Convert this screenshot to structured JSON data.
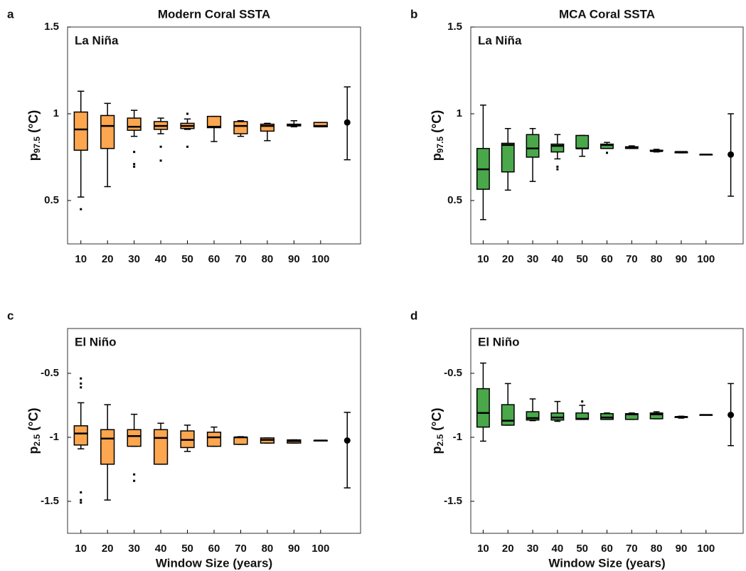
{
  "chart_data": [
    {
      "type": "box",
      "panel": "a",
      "title": "Modern Coral SSTA",
      "annotation": "La Niña",
      "ylabel_main": "p",
      "ylabel_sub": "97.5",
      "ylabel_unit": " (°C)",
      "color": "#fca650",
      "categories": [
        "10",
        "20",
        "30",
        "40",
        "50",
        "60",
        "70",
        "80",
        "90",
        "100"
      ],
      "low": [
        0.52,
        0.58,
        0.87,
        0.885,
        0.91,
        0.84,
        0.87,
        0.845,
        0.925,
        0.925
      ],
      "q1": [
        0.79,
        0.8,
        0.905,
        0.91,
        0.915,
        0.92,
        0.885,
        0.9,
        0.93,
        0.925
      ],
      "median": [
        0.91,
        0.93,
        0.925,
        0.93,
        0.93,
        0.925,
        0.93,
        0.93,
        0.935,
        0.93
      ],
      "q3": [
        1.01,
        0.99,
        0.975,
        0.955,
        0.945,
        0.985,
        0.955,
        0.94,
        0.94,
        0.95
      ],
      "high": [
        1.13,
        1.06,
        1.02,
        0.975,
        0.97,
        0.985,
        0.96,
        0.945,
        0.96,
        0.95
      ],
      "outliers": [
        [
          0.45
        ],
        [],
        [
          0.78,
          0.71,
          0.695
        ],
        [
          0.81,
          0.73
        ],
        [
          1.0,
          0.81
        ],
        [],
        [],
        [],
        [],
        []
      ],
      "reference": {
        "value": 0.95,
        "low": 0.735,
        "high": 1.155
      },
      "ylim": [
        0.25,
        1.5
      ],
      "yticks": [
        0.5,
        1,
        1.5
      ]
    },
    {
      "type": "box",
      "panel": "b",
      "title": "MCA Coral SSTA",
      "annotation": "La Niña",
      "ylabel_main": "p",
      "ylabel_sub": "97.5",
      "ylabel_unit": " (°C)",
      "color": "#4aa84b",
      "categories": [
        "10",
        "20",
        "30",
        "40",
        "50",
        "60",
        "70",
        "80",
        "90",
        "100"
      ],
      "low": [
        0.39,
        0.56,
        0.61,
        0.74,
        0.755,
        0.8,
        0.8,
        0.78,
        0.775,
        0.765
      ],
      "q1": [
        0.565,
        0.665,
        0.75,
        0.78,
        0.8,
        0.8,
        0.8,
        0.785,
        0.775,
        0.765
      ],
      "median": [
        0.68,
        0.82,
        0.8,
        0.815,
        0.8,
        0.82,
        0.805,
        0.785,
        0.78,
        0.765
      ],
      "q3": [
        0.8,
        0.83,
        0.88,
        0.825,
        0.875,
        0.825,
        0.81,
        0.79,
        0.78,
        0.765
      ],
      "high": [
        1.05,
        0.915,
        0.915,
        0.88,
        0.875,
        0.835,
        0.815,
        0.795,
        0.78,
        0.765
      ],
      "outliers": [
        [],
        [],
        [],
        [
          0.695,
          0.68
        ],
        [],
        [
          0.775
        ],
        [],
        [],
        [],
        []
      ],
      "reference": {
        "value": 0.765,
        "low": 0.525,
        "high": 1.0
      },
      "ylim": [
        0.25,
        1.5
      ],
      "yticks": [
        0.5,
        1,
        1.5
      ]
    },
    {
      "type": "box",
      "panel": "c",
      "annotation": "El Niño",
      "xlabel": "Window Size (years)",
      "ylabel_main": "p",
      "ylabel_sub": "2.5",
      "ylabel_unit": " (°C)",
      "color": "#fca650",
      "categories": [
        "10",
        "20",
        "30",
        "40",
        "50",
        "60",
        "70",
        "80",
        "90",
        "100"
      ],
      "low": [
        -1.09,
        -1.49,
        -1.07,
        -1.21,
        -1.11,
        -1.07,
        -1.055,
        -1.045,
        -1.045,
        -1.025
      ],
      "q1": [
        -1.06,
        -1.21,
        -1.07,
        -1.21,
        -1.08,
        -1.07,
        -1.055,
        -1.045,
        -1.045,
        -1.025
      ],
      "median": [
        -0.97,
        -1.01,
        -0.99,
        -1.005,
        -1.02,
        -1.0,
        -1.0,
        -1.02,
        -1.03,
        -1.025
      ],
      "q3": [
        -0.91,
        -0.94,
        -0.94,
        -0.94,
        -0.95,
        -0.96,
        -1.0,
        -1.005,
        -1.02,
        -1.025
      ],
      "high": [
        -0.73,
        -0.745,
        -0.82,
        -0.89,
        -0.905,
        -0.92,
        -0.995,
        -1.005,
        -1.02,
        -1.025
      ],
      "outliers": [
        [
          -0.54,
          -0.58,
          -0.61,
          -1.43,
          -1.49,
          -1.51
        ],
        [],
        [
          -1.29,
          -1.34
        ],
        [],
        [],
        [],
        [],
        [],
        [],
        []
      ],
      "reference": {
        "value": -1.025,
        "low": -1.395,
        "high": -0.805
      },
      "ylim": [
        -1.75,
        -0.15
      ],
      "yticks": [
        -1.5,
        -1,
        -0.5
      ]
    },
    {
      "type": "box",
      "panel": "d",
      "annotation": "El Niño",
      "xlabel": "Window Size (years)",
      "ylabel_main": "p",
      "ylabel_sub": "2.5",
      "ylabel_unit": " (°C)",
      "color": "#4aa84b",
      "categories": [
        "10",
        "20",
        "30",
        "40",
        "50",
        "60",
        "70",
        "80",
        "90",
        "100"
      ],
      "low": [
        -1.03,
        -0.905,
        -0.87,
        -0.875,
        -0.86,
        -0.86,
        -0.86,
        -0.855,
        -0.85,
        -0.825
      ],
      "q1": [
        -0.92,
        -0.905,
        -0.865,
        -0.865,
        -0.86,
        -0.86,
        -0.86,
        -0.855,
        -0.845,
        -0.825
      ],
      "median": [
        -0.81,
        -0.87,
        -0.85,
        -0.845,
        -0.855,
        -0.845,
        -0.82,
        -0.82,
        -0.84,
        -0.825
      ],
      "q3": [
        -0.62,
        -0.745,
        -0.8,
        -0.81,
        -0.81,
        -0.815,
        -0.815,
        -0.81,
        -0.84,
        -0.825
      ],
      "high": [
        -0.42,
        -0.58,
        -0.7,
        -0.72,
        -0.75,
        -0.81,
        -0.81,
        -0.8,
        -0.835,
        -0.825
      ],
      "outliers": [
        [],
        [],
        [],
        [],
        [
          -0.72
        ],
        [],
        [],
        [],
        [],
        []
      ],
      "reference": {
        "value": -0.825,
        "low": -1.065,
        "high": -0.58
      },
      "ylim": [
        -1.75,
        -0.15
      ],
      "yticks": [
        -1.5,
        -1,
        -0.5
      ]
    }
  ]
}
